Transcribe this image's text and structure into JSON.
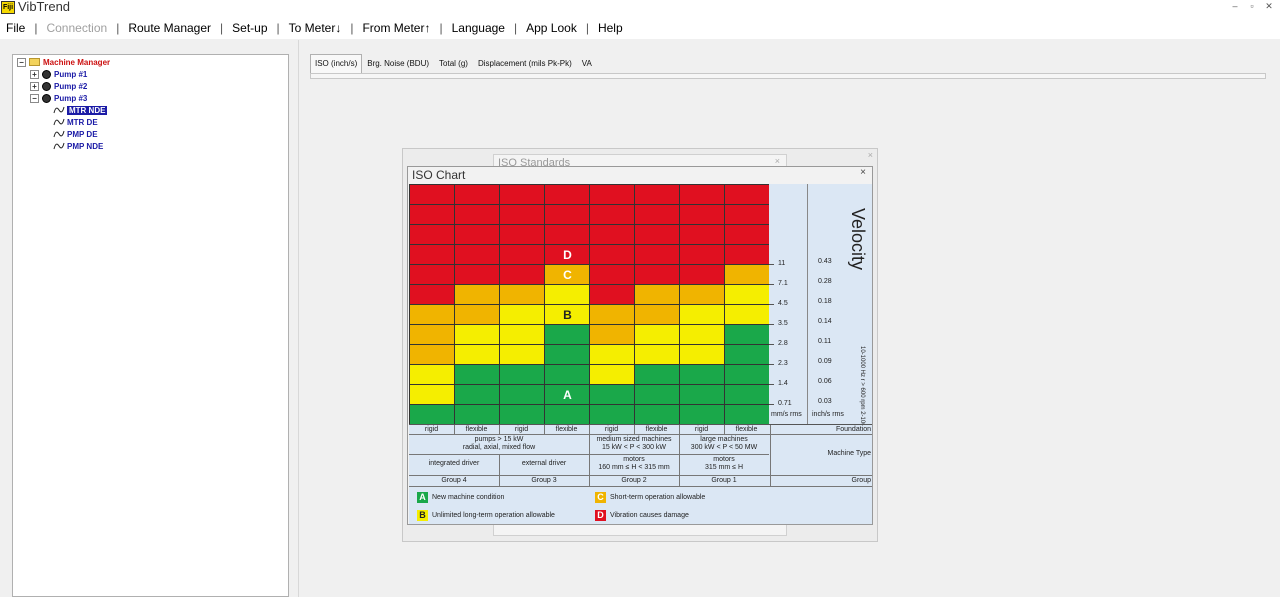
{
  "window": {
    "title": "VibTrend",
    "logo_text": "Fiji"
  },
  "menu": [
    {
      "label": "File",
      "enabled": true
    },
    {
      "label": "Connection",
      "enabled": false
    },
    {
      "label": "Route Manager",
      "enabled": true
    },
    {
      "label": "Set-up",
      "enabled": true
    },
    {
      "label": "To Meter↓",
      "enabled": true
    },
    {
      "label": "From Meter↑",
      "enabled": true
    },
    {
      "label": "Language",
      "enabled": true
    },
    {
      "label": "App Look",
      "enabled": true
    },
    {
      "label": "Help",
      "enabled": true
    }
  ],
  "tree": {
    "root": "Machine Manager",
    "pumps": [
      "Pump #1",
      "Pump #2",
      "Pump #3"
    ],
    "points": [
      "MTR NDE",
      "MTR DE",
      "PMP DE",
      "PMP NDE"
    ],
    "selected": "MTR NDE"
  },
  "tabs": [
    "ISO (inch/s)",
    "Brg. Noise (BDU)",
    "Total (g)",
    "Displacement (mils Pk-Pk)",
    "VA"
  ],
  "active_tab": "ISO (inch/s)",
  "background_dialog": {
    "title": "ISO Standards"
  },
  "iso_chart": {
    "title": "ISO Chart",
    "close": "×",
    "velocity_label": "Velocity",
    "freq_note": "10-1000 Hz r > 600 rpm  2-1000 Hz r > 120 rpm",
    "unit_mm": "mm/s rms",
    "unit_inch": "inch/s rms",
    "mm_values": [
      "11",
      "7.1",
      "4.5",
      "3.5",
      "2.8",
      "2.3",
      "1.4",
      "0.71"
    ],
    "inch_values": [
      "0.43",
      "0.28",
      "0.18",
      "0.14",
      "0.11",
      "0.09",
      "0.06",
      "0.03"
    ],
    "zone_colors": {
      "A": "#1aa84a",
      "B": "#f5ee00",
      "C": "#f0b400",
      "D": "#e01020"
    },
    "zone_letters": [
      "D",
      "C",
      "B",
      "A"
    ],
    "columns_zone_rows": [
      [
        "D",
        "D",
        "D",
        "D",
        "D",
        "D",
        "C",
        "C",
        "C",
        "B",
        "B",
        "A"
      ],
      [
        "D",
        "D",
        "D",
        "D",
        "D",
        "C",
        "C",
        "B",
        "B",
        "A",
        "A",
        "A"
      ],
      [
        "D",
        "D",
        "D",
        "D",
        "D",
        "C",
        "B",
        "B",
        "B",
        "A",
        "A",
        "A"
      ],
      [
        "D",
        "D",
        "D",
        "D",
        "C",
        "B",
        "B",
        "A",
        "A",
        "A",
        "A",
        "A"
      ],
      [
        "D",
        "D",
        "D",
        "D",
        "D",
        "D",
        "C",
        "C",
        "B",
        "B",
        "A",
        "A"
      ],
      [
        "D",
        "D",
        "D",
        "D",
        "D",
        "C",
        "C",
        "B",
        "B",
        "A",
        "A",
        "A"
      ],
      [
        "D",
        "D",
        "D",
        "D",
        "D",
        "C",
        "B",
        "B",
        "B",
        "A",
        "A",
        "A"
      ],
      [
        "D",
        "D",
        "D",
        "D",
        "C",
        "B",
        "B",
        "A",
        "A",
        "A",
        "A",
        "A"
      ]
    ],
    "foundation": [
      "rigid",
      "flexible",
      "rigid",
      "flexible",
      "rigid",
      "flexible",
      "rigid",
      "flexible"
    ],
    "foundation_label": "Foundation",
    "machine_type_label": "Machine Type",
    "group_label": "Group",
    "pumps_desc_1": "pumps > 15 kW",
    "pumps_desc_2": "radial, axial, mixed flow",
    "medium_desc_1": "medium sized machines",
    "medium_desc_2": "15 kW < P < 300 kW",
    "large_desc_1": "large machines",
    "large_desc_2": "300 kW < P < 50 MW",
    "integrated_driver": "integrated driver",
    "external_driver": "external driver",
    "motors_medium_1": "motors",
    "motors_medium_2": "160 mm ≤ H < 315 mm",
    "motors_large_1": "motors",
    "motors_large_2": "315 mm ≤ H",
    "groups": [
      "Group 4",
      "Group 3",
      "Group 2",
      "Group 1"
    ],
    "legend": [
      {
        "letter": "A",
        "text": "New machine condition"
      },
      {
        "letter": "C",
        "text": "Short-term operation allowable"
      },
      {
        "letter": "B",
        "text": "Unlimited long-term operation allowable"
      },
      {
        "letter": "D",
        "text": "Vibration causes damage"
      }
    ]
  }
}
